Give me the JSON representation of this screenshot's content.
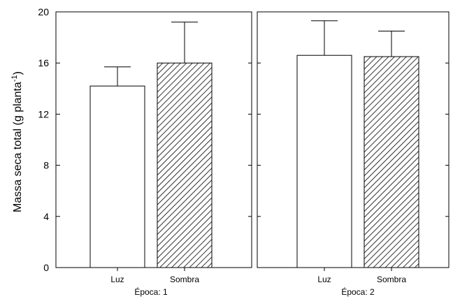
{
  "chart_data": {
    "type": "bar",
    "ylabel": "Massa seca total (g planta",
    "ylabel_superscript": "-1",
    "ylabel_close": ")",
    "ylim": [
      0,
      20
    ],
    "yticks": [
      "0",
      "4",
      "8",
      "12",
      "16",
      "20"
    ],
    "grid": false,
    "error_bars": true,
    "panels": [
      {
        "label": "Época: 1",
        "categories": [
          "Luz",
          "Sombra"
        ],
        "values": [
          14.2,
          16.0
        ],
        "errors": [
          1.5,
          3.2
        ],
        "fills": [
          "white",
          "hatch"
        ]
      },
      {
        "label": "Época: 2",
        "categories": [
          "Luz",
          "Sombra"
        ],
        "values": [
          16.6,
          16.5
        ],
        "errors": [
          2.7,
          2.0
        ],
        "fills": [
          "white",
          "hatch"
        ]
      }
    ]
  }
}
